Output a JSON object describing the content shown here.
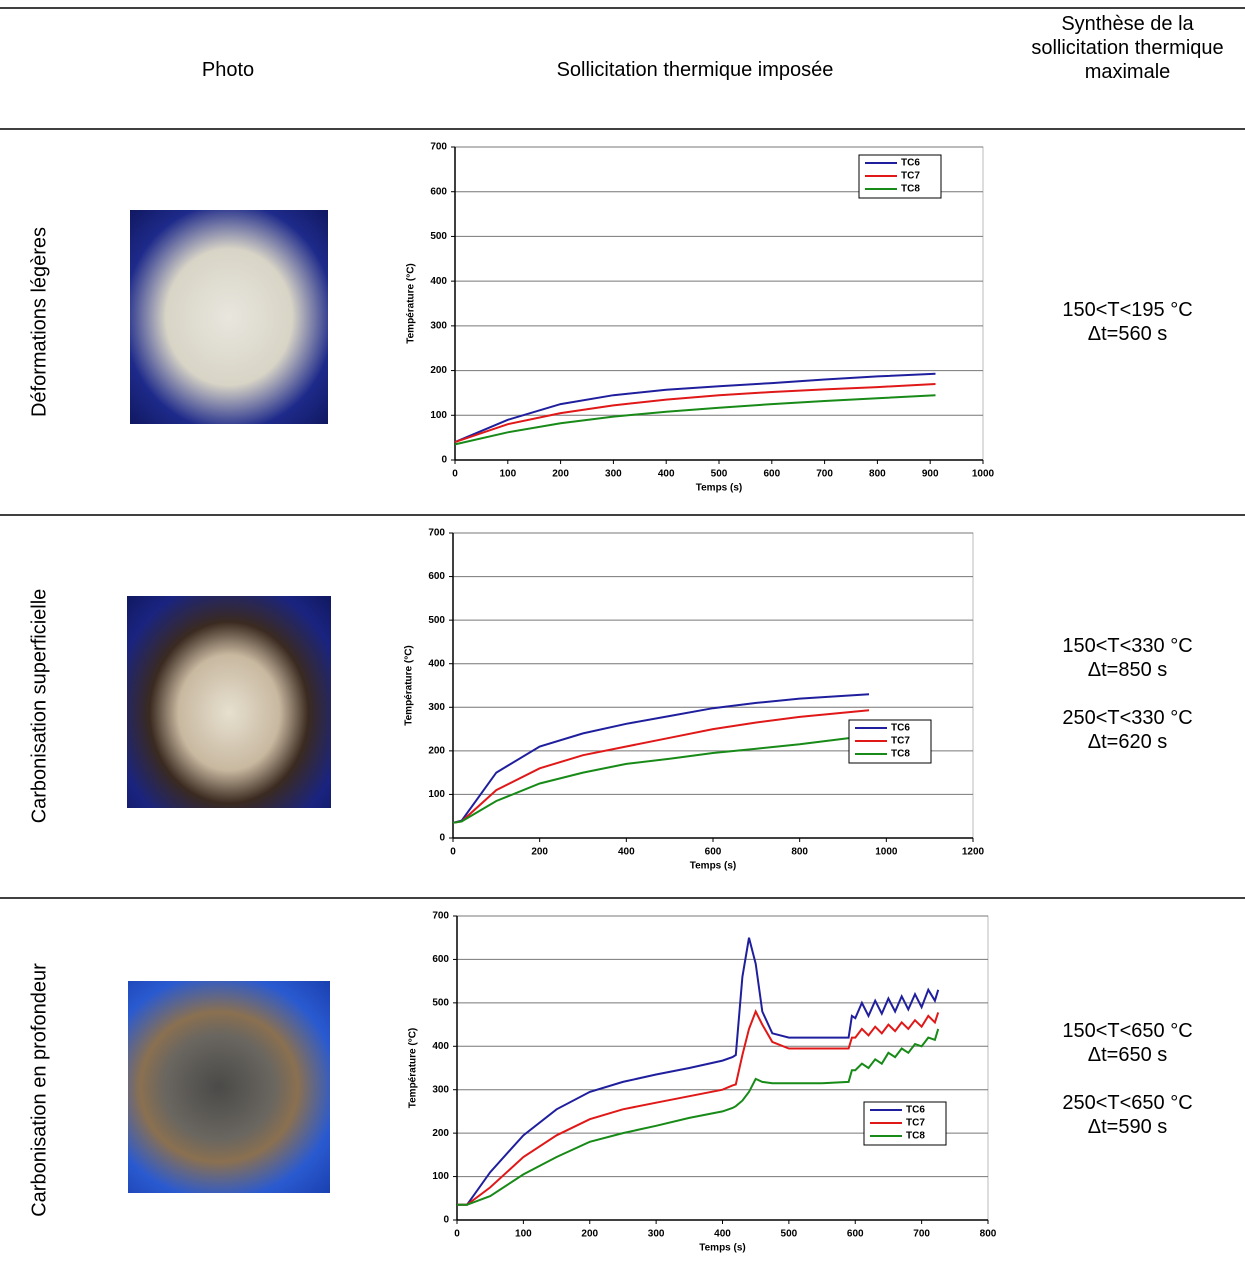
{
  "header": {
    "photo": "Photo",
    "chart": "Sollicitation thermique imposée",
    "synthesis": "Synthèse de la sollicitation thermique maximale"
  },
  "rows": [
    {
      "label": "Déformations légères",
      "synthesis": [
        "150<T<195 °C",
        "Δt=560 s"
      ]
    },
    {
      "label": "Carbonisation superficielle",
      "synthesis": [
        "150<T<330 °C",
        "Δt=850 s",
        "250<T<330 °C",
        "Δt=620 s"
      ]
    },
    {
      "label": "Carbonisation en profondeur",
      "synthesis": [
        "150<T<650 °C",
        "Δt=650 s",
        "250<T<650 °C",
        "Δt=590 s"
      ]
    }
  ],
  "chart_data": [
    {
      "type": "line",
      "x_label": "Temps (s)",
      "y_label": "Température (°C)",
      "x": [
        0,
        100,
        200,
        300,
        400,
        500,
        600,
        700,
        800,
        910
      ],
      "series": [
        {
          "name": "TC6",
          "color": "#1f1f9e",
          "values": [
            40,
            90,
            125,
            145,
            157,
            165,
            172,
            180,
            187,
            193
          ]
        },
        {
          "name": "TC7",
          "color": "#e01818",
          "values": [
            40,
            80,
            105,
            122,
            135,
            145,
            152,
            158,
            163,
            170
          ]
        },
        {
          "name": "TC8",
          "color": "#178a17",
          "values": [
            35,
            62,
            82,
            97,
            108,
            117,
            125,
            132,
            138,
            145
          ]
        }
      ],
      "xlim": [
        0,
        1000
      ],
      "ylim": [
        0,
        700
      ],
      "xticks": [
        0,
        100,
        200,
        300,
        400,
        500,
        600,
        700,
        800,
        900,
        1000
      ],
      "yticks": [
        0,
        100,
        200,
        300,
        400,
        500,
        600,
        700
      ],
      "grid": true,
      "legend": "upper right"
    },
    {
      "type": "line",
      "x_label": "Temps (s)",
      "y_label": "Température (°C)",
      "x": [
        0,
        20,
        100,
        200,
        300,
        400,
        500,
        600,
        700,
        800,
        960
      ],
      "series": [
        {
          "name": "TC6",
          "color": "#1f1f9e",
          "values": [
            35,
            40,
            150,
            210,
            240,
            262,
            280,
            298,
            310,
            320,
            330
          ]
        },
        {
          "name": "TC7",
          "color": "#e01818",
          "values": [
            35,
            38,
            110,
            160,
            190,
            210,
            230,
            250,
            265,
            278,
            293
          ]
        },
        {
          "name": "TC8",
          "color": "#178a17",
          "values": [
            35,
            38,
            85,
            125,
            150,
            170,
            182,
            195,
            205,
            215,
            235
          ]
        }
      ],
      "xlim": [
        0,
        1200
      ],
      "ylim": [
        0,
        700
      ],
      "xticks": [
        0,
        200,
        400,
        600,
        800,
        1000,
        1200
      ],
      "yticks": [
        0,
        100,
        200,
        300,
        400,
        500,
        600,
        700
      ],
      "grid": true,
      "legend": "lower right"
    },
    {
      "type": "line",
      "x_label": "Temps (s)",
      "y_label": "Température (°C)",
      "x": [
        0,
        15,
        50,
        100,
        150,
        200,
        250,
        300,
        350,
        400,
        415,
        420,
        430,
        440,
        450,
        460,
        475,
        500,
        550,
        590,
        595,
        600,
        610,
        620,
        630,
        640,
        650,
        660,
        670,
        680,
        690,
        700,
        710,
        720,
        725
      ],
      "series": [
        {
          "name": "TC6",
          "color": "#1f1f9e",
          "values": [
            35,
            35,
            110,
            195,
            255,
            295,
            318,
            335,
            350,
            367,
            375,
            380,
            560,
            650,
            590,
            480,
            430,
            420,
            420,
            420,
            470,
            465,
            500,
            470,
            505,
            475,
            510,
            480,
            515,
            485,
            520,
            490,
            530,
            505,
            530
          ]
        },
        {
          "name": "TC7",
          "color": "#e01818",
          "values": [
            35,
            35,
            75,
            145,
            195,
            232,
            255,
            270,
            285,
            300,
            310,
            312,
            380,
            440,
            480,
            450,
            410,
            395,
            395,
            395,
            420,
            420,
            440,
            425,
            445,
            430,
            450,
            435,
            455,
            440,
            460,
            445,
            470,
            455,
            478
          ]
        },
        {
          "name": "TC8",
          "color": "#178a17",
          "values": [
            35,
            35,
            55,
            105,
            145,
            180,
            200,
            217,
            235,
            250,
            258,
            262,
            275,
            295,
            325,
            318,
            315,
            315,
            315,
            318,
            345,
            345,
            360,
            350,
            370,
            360,
            385,
            375,
            395,
            385,
            405,
            400,
            420,
            415,
            440
          ]
        }
      ],
      "xlim": [
        0,
        800
      ],
      "ylim": [
        0,
        700
      ],
      "xticks": [
        0,
        100,
        200,
        300,
        400,
        500,
        600,
        700,
        800
      ],
      "yticks": [
        0,
        100,
        200,
        300,
        400,
        500,
        600,
        700
      ],
      "grid": true,
      "legend": "lower right"
    }
  ]
}
